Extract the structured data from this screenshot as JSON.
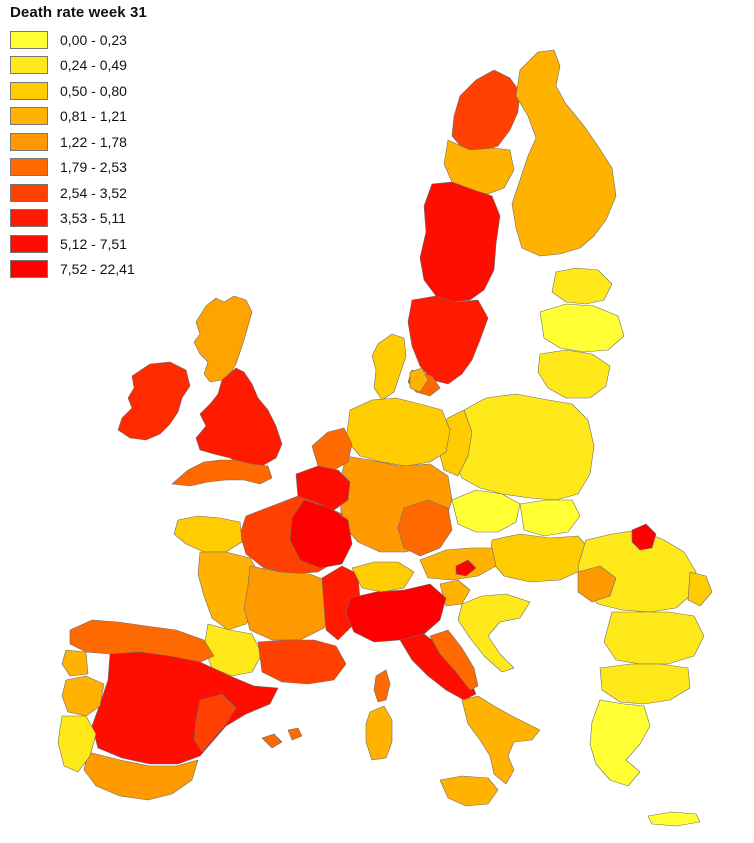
{
  "legend": {
    "title": "Death rate week 31",
    "items": [
      {
        "label": "0,00 - 0,23",
        "color": "#ffff33"
      },
      {
        "label": "0,24 - 0,49",
        "color": "#ffe81a"
      },
      {
        "label": "0,50 - 0,80",
        "color": "#ffcc00"
      },
      {
        "label": "0,81 - 1,21",
        "color": "#ffb300"
      },
      {
        "label": "1,22 - 1,78",
        "color": "#ff9900"
      },
      {
        "label": "1,79 - 2,53",
        "color": "#ff6a00"
      },
      {
        "label": "2,54 - 3,52",
        "color": "#ff4000"
      },
      {
        "label": "3,53 - 5,11",
        "color": "#ff1a00"
      },
      {
        "label": "5,12 - 7,51",
        "color": "#ff0d00"
      },
      {
        "label": "7,52 - 22,41",
        "color": "#ff0000"
      }
    ]
  },
  "map": {
    "colors": {
      "background": "#ffffff",
      "border": "#6d6d6d",
      "lowest": "#ffff33",
      "low": "#ffe81a",
      "lower_mid": "#ffcc00",
      "mid": "#ffb300",
      "upper_mid": "#ff9900",
      "high": "#ff6a00",
      "higher": "#ff4000",
      "very_high": "#ff1a00",
      "highest": "#ff0000"
    }
  }
}
